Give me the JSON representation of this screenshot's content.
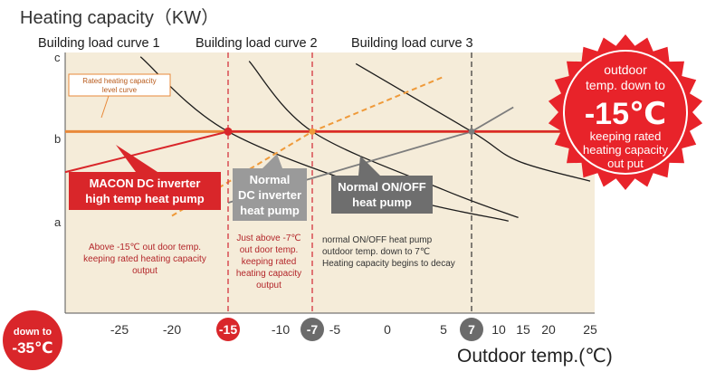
{
  "chart_data": {
    "type": "line",
    "title": "Heating capacity（KW）",
    "xlabel": "Outdoor temp.(℃)",
    "x_ticks": [
      -25,
      -20,
      -15,
      -10,
      -7,
      -5,
      0,
      5,
      7,
      10,
      15,
      20,
      25
    ],
    "xlim": [
      -35,
      25
    ],
    "y_ticks": [
      "a",
      "b",
      "c"
    ],
    "ylim": [
      0,
      3
    ],
    "grid": false,
    "series": [
      {
        "name": "Rated heating capacity level curve",
        "points": [
          [
            -35,
            2.09
          ],
          [
            25,
            2.09
          ]
        ]
      },
      {
        "name": "Building load curve 1",
        "points": [
          [
            -23,
            2.95
          ],
          [
            -15,
            2.09
          ],
          [
            0,
            1.38
          ],
          [
            12,
            1.06
          ]
        ]
      },
      {
        "name": "Building load curve 2",
        "points": [
          [
            -13,
            2.9
          ],
          [
            -7,
            2.09
          ],
          [
            5,
            1.42
          ],
          [
            14,
            1.1
          ]
        ]
      },
      {
        "name": "Building load curve 3",
        "points": [
          [
            -3,
            2.87
          ],
          [
            7,
            2.09
          ],
          [
            14,
            1.75
          ],
          [
            25,
            1.52
          ]
        ]
      },
      {
        "name": "MACON DC inverter high temp heat pump",
        "points": [
          [
            -35,
            1.53
          ],
          [
            -15,
            2.09
          ]
        ]
      },
      {
        "name": "Normal DC inverter heat pump",
        "points": [
          [
            -20,
            1.12
          ],
          [
            -7,
            2.09
          ],
          [
            5,
            2.72
          ]
        ]
      },
      {
        "name": "Normal ON/OFF heat pump",
        "points": [
          [
            -15,
            1.27
          ],
          [
            7,
            2.09
          ],
          [
            13,
            2.37
          ]
        ]
      }
    ],
    "intersections": [
      [
        -15,
        2.09
      ],
      [
        -7,
        2.09
      ],
      [
        7,
        2.09
      ]
    ],
    "annotations": {
      "load_curve_1": "Building load curve 1",
      "load_curve_2": "Building load curve 2",
      "load_curve_3": "Building load curve 3",
      "rated_line_label": [
        "Rated heating capacity",
        "level curve"
      ],
      "macon_label": [
        "MACON DC inverter",
        "high temp heat pump"
      ],
      "normal_dc_label": [
        "Normal",
        "DC inverter",
        "heat pump"
      ],
      "onoff_label": [
        "Normal ON/OFF",
        "heat pump"
      ],
      "macon_note": [
        "Above -15℃ out door temp.",
        "keeping rated heating capacity",
        "output"
      ],
      "dc_note": [
        "Just above -7℃",
        "out door temp.",
        "keeping rated",
        "heating capacity",
        "output"
      ],
      "onoff_note": [
        "normal ON/OFF heat pump",
        "outdoor temp. down to 7℃",
        "Heating capacity begins to decay"
      ],
      "burst_text": [
        "outdoor",
        "temp. down to",
        "-15℃",
        "keeping rated",
        "heating capacity",
        "out put"
      ],
      "down_to_badge": [
        "down to",
        "-35℃"
      ]
    },
    "colors": {
      "background": "#f5ecd9",
      "rated_line": "#e8893a",
      "macon": "#d9262a",
      "normal_dc": "#ef9a3a",
      "onoff": "#7d7d7d",
      "load_curve": "#1c1c1c",
      "dashed_red": "#d6424a",
      "dashed_black": "#333333"
    }
  }
}
